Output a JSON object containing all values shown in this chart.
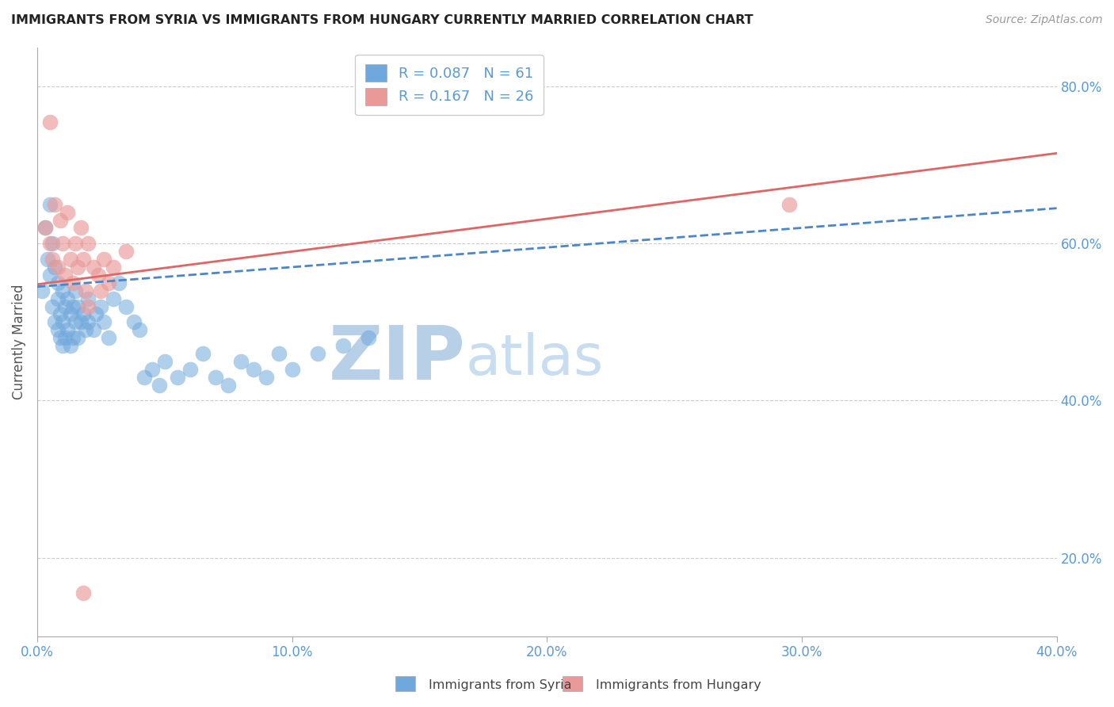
{
  "title": "IMMIGRANTS FROM SYRIA VS IMMIGRANTS FROM HUNGARY CURRENTLY MARRIED CORRELATION CHART",
  "source_text": "Source: ZipAtlas.com",
  "ylabel": "Currently Married",
  "xlim": [
    0.0,
    0.4
  ],
  "ylim": [
    0.1,
    0.85
  ],
  "x_tick_labels": [
    "0.0%",
    "10.0%",
    "20.0%",
    "30.0%",
    "40.0%"
  ],
  "x_ticks": [
    0.0,
    0.1,
    0.2,
    0.3,
    0.4
  ],
  "y_tick_labels_right": [
    "20.0%",
    "40.0%",
    "60.0%",
    "80.0%"
  ],
  "y_ticks_right": [
    0.2,
    0.4,
    0.6,
    0.8
  ],
  "syria_R": 0.087,
  "syria_N": 61,
  "hungary_R": 0.167,
  "hungary_N": 26,
  "syria_color": "#6fa8dc",
  "hungary_color": "#ea9999",
  "syria_line_color": "#4a86c8",
  "hungary_line_color": "#e06666",
  "watermark_zip": "ZIP",
  "watermark_atlas": "atlas",
  "watermark_color_zip": "#b8cfe8",
  "watermark_color_atlas": "#c8ddf0",
  "syria_x": [
    0.002,
    0.003,
    0.004,
    0.005,
    0.005,
    0.006,
    0.006,
    0.007,
    0.007,
    0.008,
    0.008,
    0.008,
    0.009,
    0.009,
    0.01,
    0.01,
    0.01,
    0.011,
    0.011,
    0.012,
    0.012,
    0.013,
    0.013,
    0.014,
    0.014,
    0.015,
    0.015,
    0.016,
    0.016,
    0.017,
    0.018,
    0.019,
    0.02,
    0.02,
    0.022,
    0.023,
    0.025,
    0.026,
    0.028,
    0.03,
    0.032,
    0.035,
    0.038,
    0.04,
    0.042,
    0.045,
    0.048,
    0.05,
    0.055,
    0.06,
    0.065,
    0.07,
    0.075,
    0.08,
    0.085,
    0.09,
    0.095,
    0.1,
    0.11,
    0.12,
    0.13
  ],
  "syria_y": [
    0.54,
    0.62,
    0.58,
    0.65,
    0.56,
    0.6,
    0.52,
    0.57,
    0.5,
    0.55,
    0.49,
    0.53,
    0.51,
    0.48,
    0.54,
    0.5,
    0.47,
    0.52,
    0.48,
    0.53,
    0.49,
    0.51,
    0.47,
    0.52,
    0.48,
    0.54,
    0.5,
    0.52,
    0.48,
    0.5,
    0.51,
    0.49,
    0.53,
    0.5,
    0.49,
    0.51,
    0.52,
    0.5,
    0.48,
    0.53,
    0.55,
    0.52,
    0.5,
    0.49,
    0.43,
    0.44,
    0.42,
    0.45,
    0.43,
    0.44,
    0.46,
    0.43,
    0.42,
    0.45,
    0.44,
    0.43,
    0.46,
    0.44,
    0.46,
    0.47,
    0.48
  ],
  "hungary_x": [
    0.003,
    0.005,
    0.006,
    0.007,
    0.008,
    0.009,
    0.01,
    0.011,
    0.012,
    0.013,
    0.014,
    0.015,
    0.016,
    0.017,
    0.018,
    0.019,
    0.02,
    0.022,
    0.024,
    0.026,
    0.028,
    0.03,
    0.035,
    0.02,
    0.025,
    0.295
  ],
  "hungary_y": [
    0.62,
    0.6,
    0.58,
    0.65,
    0.57,
    0.63,
    0.6,
    0.56,
    0.64,
    0.58,
    0.55,
    0.6,
    0.57,
    0.62,
    0.58,
    0.54,
    0.6,
    0.57,
    0.56,
    0.58,
    0.55,
    0.57,
    0.59,
    0.52,
    0.54,
    0.65
  ],
  "hungary_outlier_x": [
    0.018
  ],
  "hungary_outlier_y": [
    0.155
  ],
  "hungary_top_x": [
    0.005
  ],
  "hungary_top_y": [
    0.755
  ],
  "syria_line_x0": 0.0,
  "syria_line_y0": 0.545,
  "syria_line_x1": 0.4,
  "syria_line_y1": 0.645,
  "hungary_line_x0": 0.0,
  "hungary_line_y0": 0.548,
  "hungary_line_x1": 0.4,
  "hungary_line_y1": 0.715
}
